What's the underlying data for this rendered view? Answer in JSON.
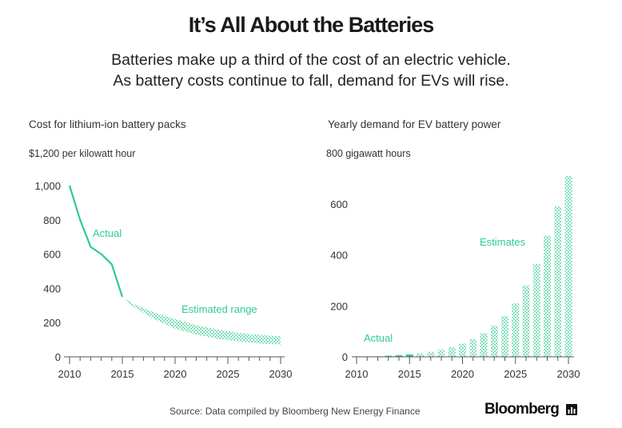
{
  "title": "It’s All About the Batteries",
  "subtitle_lines": [
    "Batteries make up a third of the cost of an electric vehicle.",
    "As battery costs continue to fall, demand for EVs will rise."
  ],
  "source": "Source: Data compiled by Bloomberg New Energy Finance",
  "brand": "Bloomberg",
  "colors": {
    "accent": "#2fcc8c",
    "text": "#1a1a1a",
    "axis": "#555555",
    "grid": "#dddddd"
  },
  "chart_data": [
    {
      "type": "line",
      "title": "Cost for lithium-ion battery packs",
      "unit_label": "$1,200 per kilowatt hour",
      "xlim": [
        2010,
        2030
      ],
      "ylim": [
        0,
        1200
      ],
      "x_ticks": [
        "2010",
        "2015",
        "2020",
        "2025",
        "2030"
      ],
      "y_ticks": [
        "0",
        "200",
        "400",
        "600",
        "800",
        "1,000"
      ],
      "series": [
        {
          "name": "Actual",
          "x": [
            2010,
            2011,
            2012,
            2013,
            2014,
            2015
          ],
          "y": [
            1000,
            800,
            642,
            600,
            540,
            350
          ]
        }
      ],
      "band": {
        "name": "Estimated range",
        "x": [
          2015,
          2016,
          2018,
          2020,
          2022,
          2024,
          2026,
          2028,
          2030
        ],
        "upper": [
          350,
          310,
          260,
          220,
          185,
          160,
          140,
          128,
          120
        ],
        "lower": [
          350,
          295,
          220,
          165,
          130,
          105,
          90,
          78,
          70
        ]
      },
      "grid": false
    },
    {
      "type": "bar",
      "title": "Yearly demand for EV battery power",
      "unit_label": "800 gigawatt hours",
      "xlim": [
        2010,
        2030
      ],
      "ylim": [
        0,
        800
      ],
      "x_ticks": [
        "2010",
        "2015",
        "2020",
        "2025",
        "2030"
      ],
      "y_ticks": [
        "0",
        "200",
        "400",
        "600"
      ],
      "actual": {
        "name": "Actual",
        "x": [
          2010,
          2011,
          2012,
          2013,
          2014,
          2015
        ],
        "values": [
          0.5,
          1,
          2,
          4,
          6,
          9
        ]
      },
      "estimates": {
        "name": "Estimates",
        "x": [
          2016,
          2017,
          2018,
          2019,
          2020,
          2021,
          2022,
          2023,
          2024,
          2025,
          2026,
          2027,
          2028,
          2029,
          2030
        ],
        "values": [
          14,
          20,
          28,
          38,
          52,
          70,
          92,
          122,
          160,
          210,
          280,
          365,
          475,
          590,
          710
        ]
      },
      "grid": false
    }
  ]
}
